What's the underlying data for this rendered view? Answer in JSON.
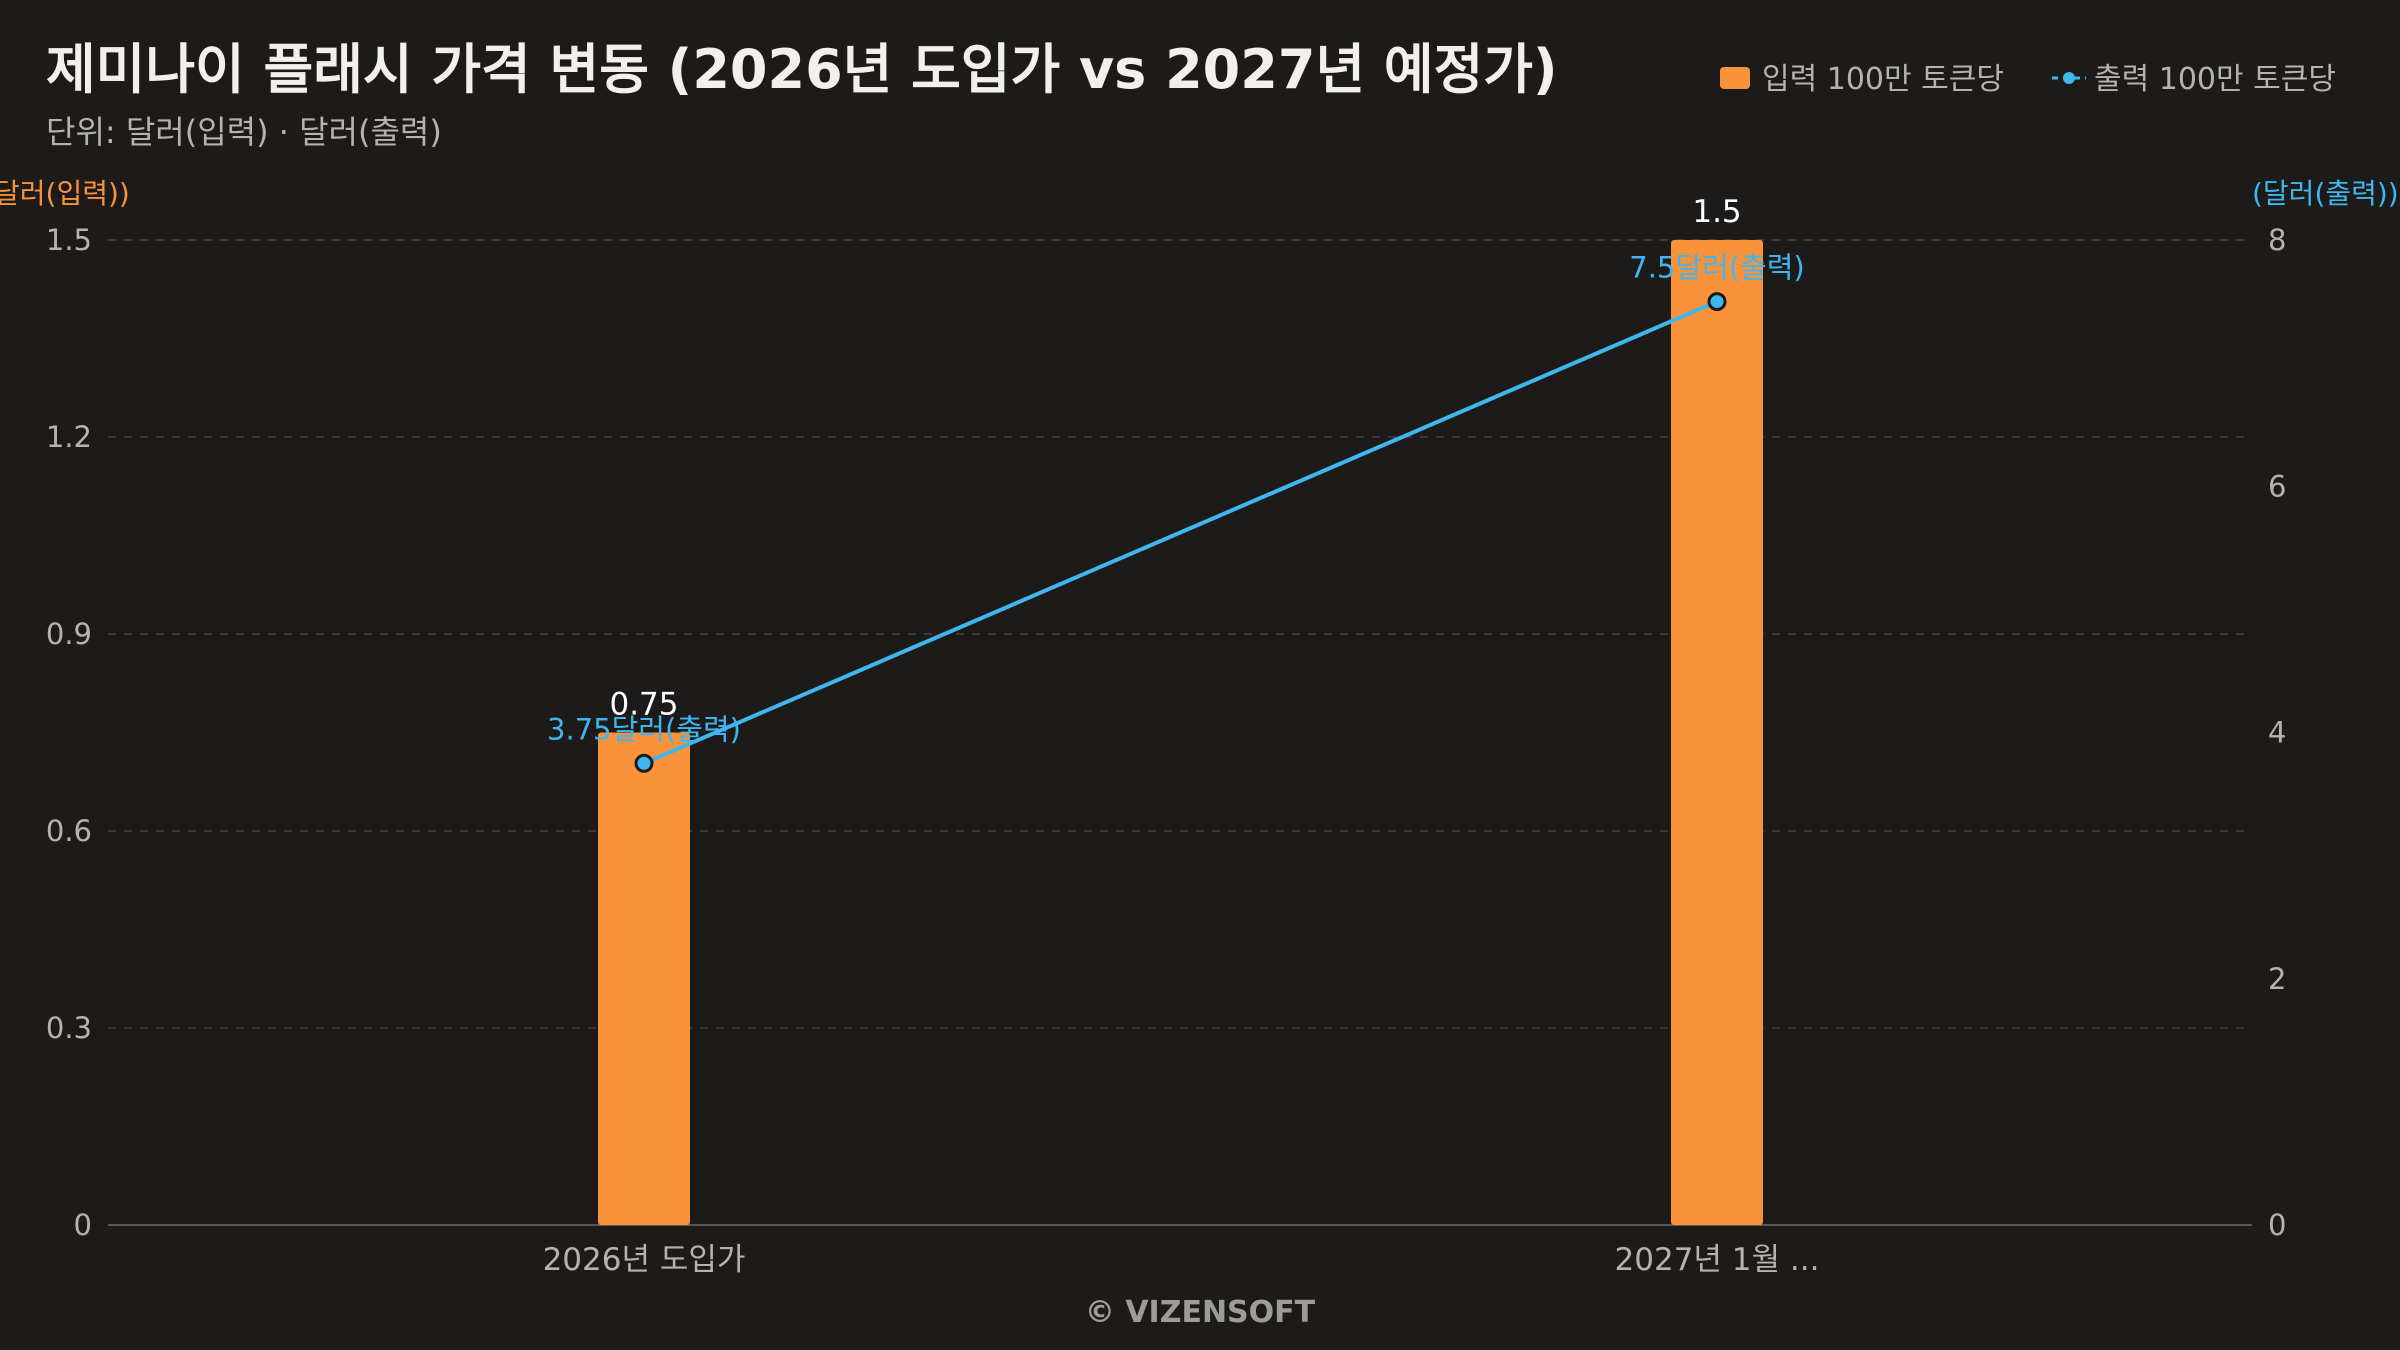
{
  "colors": {
    "background": "#1c1b1a",
    "bar": "#f9923a",
    "line": "#3fb6ee",
    "grid": "#3a3938",
    "axis": "#5a5958",
    "tick_text": "#b5b3b0",
    "title_text": "#f2f0ec",
    "subtitle_text": "#b5b3b0",
    "bar_label": "#ffffff",
    "watermark": "#9e9c99"
  },
  "chart_data": {
    "type": "bar",
    "title": "제미나이 플래시 가격 변동 (2026년 도입가 vs 2027년 예정가)",
    "subtitle": "단위: 달러(입력) · 달러(출력)",
    "categories": [
      "2026년 도입가",
      "2027년 1월 ..."
    ],
    "y_left": {
      "label": "달러(입력))",
      "range": [
        0,
        1.5
      ],
      "ticks": [
        "0",
        "0.3",
        "0.6",
        "0.9",
        "1.2",
        "1.5"
      ]
    },
    "y_right": {
      "label": "(달러(출력))",
      "range": [
        0,
        8
      ],
      "ticks": [
        "0",
        "2",
        "4",
        "6",
        "8"
      ]
    },
    "grid": true,
    "legend_position": "top-right",
    "series": [
      {
        "name": "입력 100만 토큰당",
        "kind": "bar",
        "axis": "left",
        "values": [
          0.75,
          1.5
        ],
        "value_labels": [
          "0.75",
          "1.5"
        ]
      },
      {
        "name": "출력 100만 토큰당",
        "kind": "line",
        "axis": "right",
        "values": [
          3.75,
          7.5
        ],
        "value_labels": [
          "3.75달러(출력)",
          "7.5달러(출력)"
        ]
      }
    ],
    "watermark": "© VIZENSOFT"
  }
}
